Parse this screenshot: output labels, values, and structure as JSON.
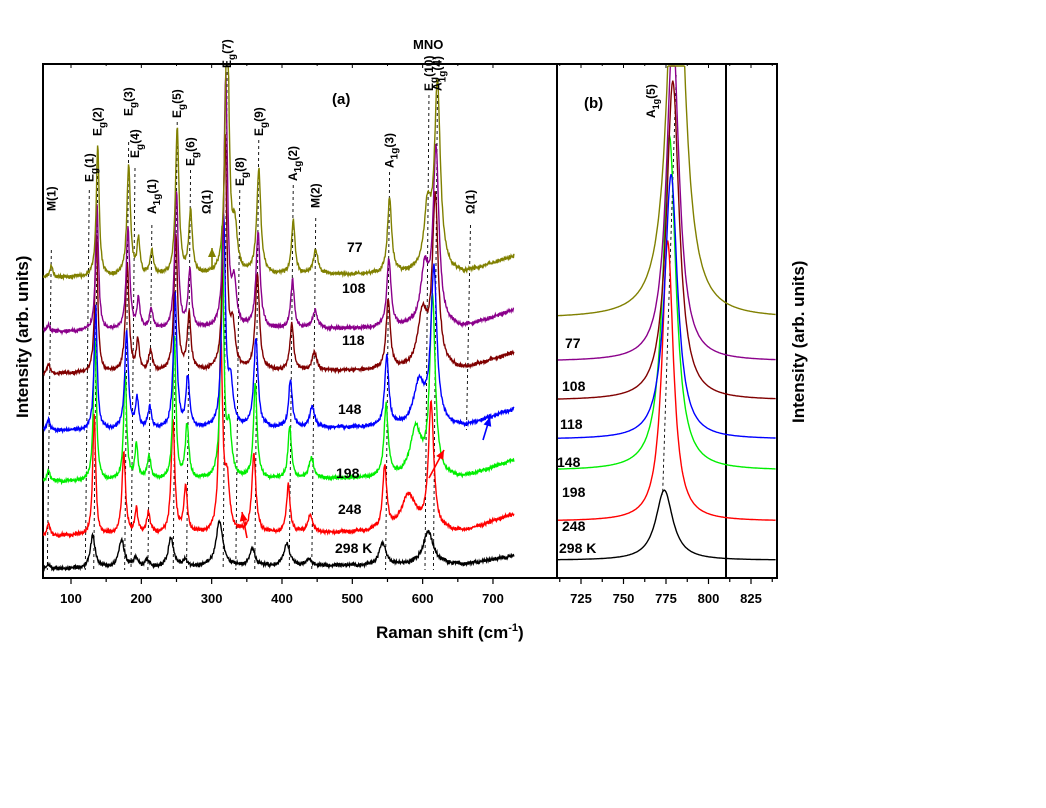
{
  "title": "MNO",
  "xlabel": "Raman shift (cm",
  "xlabel_sup": "-1",
  "xlabel_end": ")",
  "ylabel": "Intensity (arb. units)",
  "panel_a_label": "(a)",
  "panel_b_label": "(b)",
  "chart_data": [
    {
      "type": "line",
      "panel": "(a)",
      "title": "MNO",
      "xlabel": "Raman shift (cm-1)",
      "ylabel": "Intensity (arb. units)",
      "xlim": [
        60,
        731
      ],
      "xticks": [
        100,
        200,
        300,
        400,
        500,
        600,
        700
      ],
      "grid": false,
      "series_offset": "vertically stacked by temperature",
      "series": [
        {
          "name": "298 K",
          "label": "298 K",
          "color": "#000000",
          "baseline": 0.0,
          "peaks": [
            [
              68,
              0.08,
              5
            ],
            [
              131,
              0.55,
              8
            ],
            [
              172,
              0.45,
              10
            ],
            [
              192,
              0.15,
              8
            ],
            [
              208,
              0.1,
              8
            ],
            [
              242,
              0.5,
              9
            ],
            [
              262,
              0.12,
              7
            ],
            [
              311,
              0.75,
              12
            ],
            [
              358,
              0.28,
              10
            ],
            [
              407,
              0.38,
              10
            ],
            [
              438,
              0.1,
              10
            ],
            [
              543,
              0.36,
              12
            ],
            [
              608,
              0.55,
              18
            ]
          ]
        },
        {
          "name": "248 K",
          "label": "248",
          "color": "#ff0000",
          "baseline": 0.55,
          "peaks": [
            [
              68,
              0.2,
              5
            ],
            [
              133,
              2.0,
              5
            ],
            [
              175,
              1.35,
              6
            ],
            [
              193,
              0.4,
              5
            ],
            [
              210,
              0.35,
              6
            ],
            [
              245,
              1.9,
              6
            ],
            [
              263,
              0.75,
              6
            ],
            [
              313,
              3.2,
              6
            ],
            [
              322,
              0.8,
              8
            ],
            [
              360,
              1.3,
              7
            ],
            [
              409,
              0.8,
              6
            ],
            [
              440,
              0.3,
              8
            ],
            [
              546,
              1.05,
              7
            ],
            [
              612,
              2.1,
              9
            ],
            [
              580,
              0.6,
              25
            ]
          ]
        },
        {
          "name": "198 K",
          "label": "198",
          "color": "#00ee00",
          "baseline": 1.45,
          "peaks": [
            [
              68,
              0.2,
              5
            ],
            [
              134,
              2.4,
              5
            ],
            [
              177,
              1.8,
              5
            ],
            [
              193,
              0.6,
              5
            ],
            [
              211,
              0.4,
              6
            ],
            [
              247,
              2.4,
              5
            ],
            [
              265,
              0.9,
              6
            ],
            [
              315,
              4.2,
              5
            ],
            [
              325,
              0.8,
              8
            ],
            [
              362,
              1.6,
              6
            ],
            [
              411,
              0.85,
              6
            ],
            [
              442,
              0.35,
              8
            ],
            [
              548,
              1.2,
              7
            ],
            [
              614,
              3.0,
              9
            ],
            [
              590,
              0.8,
              18
            ]
          ]
        },
        {
          "name": "148 K",
          "label": "148",
          "color": "#0000ff",
          "baseline": 2.3,
          "peaks": [
            [
              68,
              0.18,
              5
            ],
            [
              135,
              2.1,
              5
            ],
            [
              179,
              1.65,
              6
            ],
            [
              194,
              0.5,
              5
            ],
            [
              212,
              0.35,
              6
            ],
            [
              248,
              2.25,
              6
            ],
            [
              266,
              0.85,
              6
            ],
            [
              317,
              3.5,
              6
            ],
            [
              327,
              0.7,
              8
            ],
            [
              363,
              1.5,
              7
            ],
            [
              412,
              0.8,
              6
            ],
            [
              443,
              0.35,
              8
            ],
            [
              549,
              1.15,
              7
            ],
            [
              616,
              2.6,
              10
            ],
            [
              595,
              0.7,
              18
            ]
          ]
        },
        {
          "name": "118 K",
          "label": "118",
          "color": "#800000",
          "baseline": 3.25,
          "peaks": [
            [
              68,
              0.15,
              5
            ],
            [
              136,
              2.3,
              5
            ],
            [
              180,
              1.8,
              6
            ],
            [
              195,
              0.5,
              5
            ],
            [
              213,
              0.35,
              6
            ],
            [
              249,
              2.3,
              6
            ],
            [
              268,
              0.95,
              6
            ],
            [
              319,
              3.9,
              6
            ],
            [
              330,
              0.7,
              8
            ],
            [
              365,
              1.6,
              7
            ],
            [
              414,
              0.8,
              6
            ],
            [
              446,
              0.3,
              8
            ],
            [
              551,
              1.15,
              7
            ],
            [
              618,
              2.8,
              10
            ],
            [
              600,
              0.9,
              16
            ]
          ]
        },
        {
          "name": "108 K",
          "label": "108",
          "color": "#8b008b",
          "baseline": 3.95,
          "peaks": [
            [
              68,
              0.12,
              5
            ],
            [
              137,
              2.1,
              5
            ],
            [
              181,
              1.7,
              6
            ],
            [
              196,
              0.5,
              5
            ],
            [
              214,
              0.35,
              6
            ],
            [
              250,
              2.3,
              6
            ],
            [
              269,
              0.95,
              6
            ],
            [
              320,
              4.2,
              6
            ],
            [
              332,
              0.7,
              8
            ],
            [
              366,
              1.6,
              7
            ],
            [
              415,
              0.8,
              6
            ],
            [
              447,
              0.3,
              8
            ],
            [
              552,
              1.15,
              7
            ],
            [
              619,
              2.9,
              10
            ],
            [
              603,
              0.9,
              14
            ]
          ]
        },
        {
          "name": "77 K",
          "label": "77",
          "color": "#808000",
          "baseline": 4.85,
          "peaks": [
            [
              72,
              0.2,
              5
            ],
            [
              138,
              2.2,
              5
            ],
            [
              182,
              1.85,
              6
            ],
            [
              196,
              0.6,
              5
            ],
            [
              215,
              0.4,
              6
            ],
            [
              251,
              2.45,
              6
            ],
            [
              270,
              1.05,
              6
            ],
            [
              322,
              4.9,
              6
            ],
            [
              333,
              0.7,
              8
            ],
            [
              367,
              1.75,
              7
            ],
            [
              416,
              0.9,
              6
            ],
            [
              448,
              0.4,
              8
            ],
            [
              553,
              1.25,
              7
            ],
            [
              621,
              3.1,
              10
            ],
            [
              607,
              1.0,
              12
            ]
          ]
        }
      ],
      "annotations": [
        {
          "text": "M(1)",
          "x": 72
        },
        {
          "text": "Eg(1)",
          "x": 126
        },
        {
          "text": "Eg(2)",
          "x": 138
        },
        {
          "text": "Eg(3)",
          "x": 182
        },
        {
          "text": "Eg(4)",
          "x": 191
        },
        {
          "text": "A1g(1)",
          "x": 215
        },
        {
          "text": "Eg(5)",
          "x": 251
        },
        {
          "text": "Eg(6)",
          "x": 270
        },
        {
          "text": "Ω(1)",
          "x": 293
        },
        {
          "text": "Eg(7)",
          "x": 322
        },
        {
          "text": "Eg(8)",
          "x": 340
        },
        {
          "text": "Eg(9)",
          "x": 367
        },
        {
          "text": "A1g(2)",
          "x": 416
        },
        {
          "text": "M(2)",
          "x": 448
        },
        {
          "text": "A1g(3)",
          "x": 553
        },
        {
          "text": "Eg(10)",
          "x": 609
        },
        {
          "text": "A1g(4)",
          "x": 621
        },
        {
          "text": "Ω(1)",
          "x": 668
        }
      ],
      "arrows": [
        {
          "color": "#808000",
          "x": 293,
          "direction": "up"
        },
        {
          "color": "#ff0000",
          "x": 327,
          "direction": "up"
        },
        {
          "color": "#ff0000",
          "x": 582,
          "direction": "up-right"
        },
        {
          "color": "#0000ff",
          "x": 664,
          "direction": "up-right"
        }
      ]
    },
    {
      "type": "line",
      "panel": "(b)",
      "xlabel": "Raman shift (cm-1)",
      "ylabel": "Intensity (arb. units)",
      "xlim": [
        711,
        840
      ],
      "xticks": [
        725,
        750,
        775,
        800,
        825
      ],
      "grid": false,
      "annotation": "A1g(5)",
      "series": [
        {
          "name": "298 K",
          "label": "298 K",
          "color": "#000000",
          "baseline": 0.0,
          "center": 774,
          "height": 0.9,
          "width": 12
        },
        {
          "name": "248 K",
          "label": "248",
          "color": "#ff0000",
          "baseline": 0.5,
          "center": 776,
          "height": 3.6,
          "width": 8
        },
        {
          "name": "198 K",
          "label": "198",
          "color": "#00ee00",
          "baseline": 1.15,
          "center": 777,
          "height": 4.3,
          "width": 9
        },
        {
          "name": "148 K",
          "label": "148",
          "color": "#0000ff",
          "baseline": 1.55,
          "center": 778,
          "height": 3.4,
          "width": 9
        },
        {
          "name": "118 K",
          "label": "118",
          "color": "#800000",
          "baseline": 2.05,
          "center": 779,
          "height": 4.1,
          "width": 9
        },
        {
          "name": "108 K",
          "label": "108",
          "color": "#8b008b",
          "baseline": 2.55,
          "center": 779,
          "height": 4.2,
          "width": 9
        },
        {
          "name": "77 K",
          "label": "77",
          "color": "#808000",
          "baseline": 3.1,
          "center": 781,
          "height": 5.9,
          "width": 11
        }
      ]
    }
  ]
}
